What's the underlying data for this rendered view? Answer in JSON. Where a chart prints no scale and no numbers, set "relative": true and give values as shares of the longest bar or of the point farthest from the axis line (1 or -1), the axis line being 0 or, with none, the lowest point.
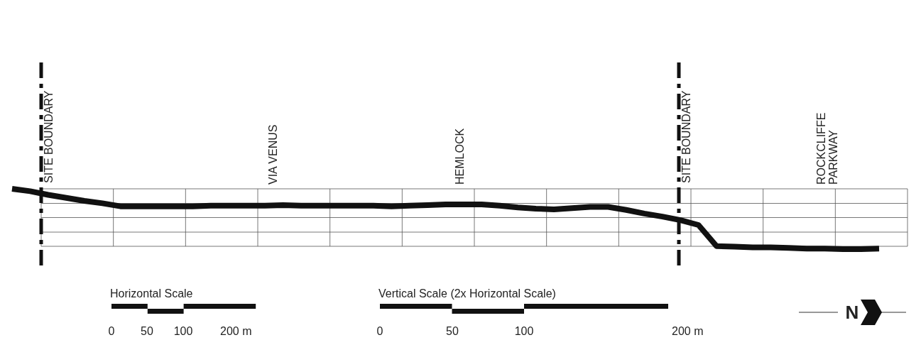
{
  "chart_data": {
    "type": "line",
    "relative": true,
    "categories": [
      null,
      null,
      null,
      null,
      null,
      null,
      null,
      null,
      null,
      null,
      null,
      null,
      null,
      null,
      null,
      null,
      null,
      null,
      null,
      null,
      null,
      null,
      null,
      null,
      null,
      null,
      null,
      null,
      null,
      null,
      null,
      null,
      null,
      null,
      null,
      null,
      null,
      null,
      null,
      null,
      null,
      null,
      null,
      null,
      null,
      null,
      null,
      null,
      null
    ],
    "series": [
      {
        "color": "#111111",
        "values": [
          1.0,
          0.96,
          0.9,
          0.85,
          0.8,
          0.76,
          0.71,
          0.71,
          0.71,
          0.71,
          0.71,
          0.72,
          0.72,
          0.72,
          0.72,
          0.73,
          0.72,
          0.72,
          0.72,
          0.72,
          0.72,
          0.71,
          0.72,
          0.73,
          0.74,
          0.74,
          0.74,
          0.72,
          0.69,
          0.67,
          0.66,
          0.68,
          0.7,
          0.7,
          0.65,
          0.59,
          0.54,
          0.48,
          0.4,
          0.05,
          0.04,
          0.03,
          0.03,
          0.02,
          0.01,
          0.01,
          0,
          0,
          0.01
        ]
      }
    ],
    "grid": true,
    "line_style": "solid",
    "annotations": [
      "SITE BOUNDARY",
      "VIA VENUS",
      "HEMLOCK",
      "SITE BOUNDARY",
      "ROCKCLIFFE PARKWAY",
      "Horizontal Scale",
      "0",
      "50",
      "100",
      "200 m",
      "Vertical Scale (2x Horizontal Scale)",
      "0",
      "50",
      "100",
      "200 m",
      "N"
    ]
  }
}
